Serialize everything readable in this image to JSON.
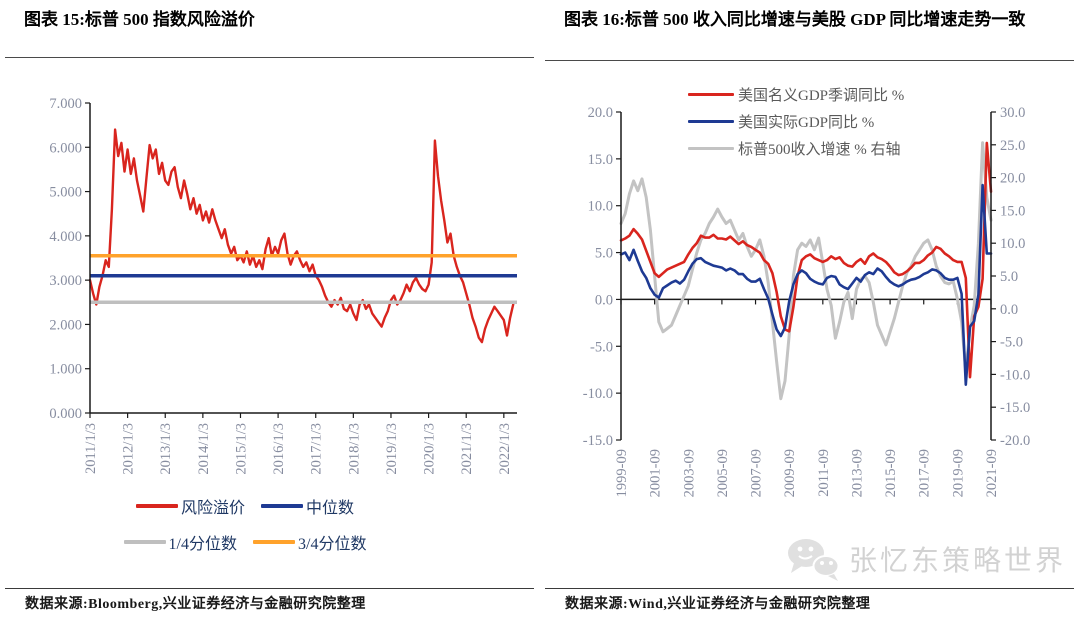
{
  "page": {
    "background": "#ffffff"
  },
  "left_panel": {
    "title": "图表 15:标普 500 指数风险溢价",
    "source": "数据来源:Bloomberg,兴业证券经济与金融研究院整理",
    "legend": [
      {
        "label": "风险溢价",
        "color": "#d9251e"
      },
      {
        "label": "中位数",
        "color": "#1e3a93"
      },
      {
        "label": "1/4分位数",
        "color": "#bfbfbf"
      },
      {
        "label": "3/4分位数",
        "color": "#ffa22b"
      }
    ]
  },
  "right_panel": {
    "title": "图表 16:标普 500 收入同比增速与美股 GDP 同比增速走势一致",
    "source": "数据来源:Wind,兴业证券经济与金融研究院整理",
    "legend": [
      {
        "label": "美国名义GDP季调同比 %",
        "color": "#d9251e"
      },
      {
        "label": "美国实际GDP同比 %",
        "color": "#1e3a93"
      },
      {
        "label": "标普500收入增速 % 右轴",
        "color": "#c3c3c3"
      }
    ],
    "watermark": "张忆东策略世界"
  },
  "chart_data": [
    {
      "type": "line",
      "title": "标普500指数风险溢价",
      "axes": {
        "left": {
          "min": 0,
          "max": 7,
          "ticks": [
            0,
            1,
            2,
            3,
            4,
            5,
            6,
            7
          ],
          "labels": [
            "0.000",
            "1.000",
            "2.000",
            "3.000",
            "4.000",
            "5.000",
            "6.000",
            "7.000"
          ]
        }
      },
      "x_axis": {
        "min": 2011,
        "max": 2022.35,
        "at_zero": false,
        "ticks": [
          2011,
          2012,
          2013,
          2014,
          2015,
          2016,
          2017,
          2018,
          2019,
          2020,
          2021,
          2022
        ],
        "labels": [
          "2011/1/3",
          "2012/1/3",
          "2013/1/3",
          "2014/1/3",
          "2015/1/3",
          "2016/1/3",
          "2017/1/3",
          "2018/1/3",
          "2019/1/3",
          "2020/1/3",
          "2021/1/3",
          "2022/1/3"
        ]
      },
      "hlines": [
        {
          "name": "3/4分位数",
          "value": 3.55,
          "color": "#ffa22b",
          "width": 3.5
        },
        {
          "name": "中位数",
          "value": 3.1,
          "color": "#1e3a93",
          "width": 3.5
        },
        {
          "name": "1/4分位数",
          "value": 2.5,
          "color": "#bfbfbf",
          "width": 3.5
        }
      ],
      "series": [
        {
          "name": "风险溢价",
          "color": "#d9251e",
          "axis": "left",
          "width": 2.4,
          "x_start": 2011,
          "x_end": 2022.25,
          "values": [
            3.0,
            2.7,
            2.45,
            2.85,
            3.1,
            3.45,
            3.3,
            4.6,
            6.4,
            5.8,
            6.1,
            5.45,
            5.95,
            5.4,
            5.75,
            5.25,
            4.9,
            4.55,
            5.3,
            6.05,
            5.75,
            5.95,
            5.4,
            5.65,
            5.25,
            5.15,
            5.45,
            5.55,
            5.1,
            4.85,
            5.25,
            4.95,
            4.6,
            4.85,
            4.5,
            4.7,
            4.35,
            4.55,
            4.3,
            4.6,
            4.35,
            4.15,
            3.95,
            4.15,
            3.8,
            3.6,
            3.75,
            3.45,
            3.55,
            3.4,
            3.65,
            3.35,
            3.55,
            3.3,
            3.45,
            3.25,
            3.7,
            3.95,
            3.55,
            3.75,
            3.6,
            3.9,
            4.05,
            3.6,
            3.35,
            3.55,
            3.65,
            3.45,
            3.3,
            3.4,
            3.2,
            3.35,
            3.1,
            3.0,
            2.85,
            2.65,
            2.5,
            2.4,
            2.55,
            2.45,
            2.6,
            2.35,
            2.3,
            2.45,
            2.25,
            2.1,
            2.45,
            2.55,
            2.35,
            2.45,
            2.25,
            2.15,
            2.05,
            1.95,
            2.15,
            2.3,
            2.55,
            2.65,
            2.45,
            2.55,
            2.7,
            2.9,
            2.75,
            2.95,
            3.05,
            2.9,
            2.8,
            2.75,
            2.9,
            3.4,
            6.15,
            5.35,
            4.8,
            4.35,
            3.85,
            4.05,
            3.55,
            3.3,
            3.1,
            2.95,
            2.7,
            2.45,
            2.15,
            1.95,
            1.7,
            1.6,
            1.9,
            2.1,
            2.25,
            2.4,
            2.3,
            2.2,
            2.1,
            1.75,
            2.15,
            2.45
          ]
        }
      ]
    },
    {
      "type": "line",
      "title": "标普500收入同比增速与美股GDP同比增速",
      "axes": {
        "left": {
          "min": -15,
          "max": 20,
          "ticks": [
            -15,
            -10,
            -5,
            0,
            5,
            10,
            15,
            20
          ],
          "labels": [
            "-15.0",
            "-10.0",
            "-5.0",
            "0.0",
            "5.0",
            "10.0",
            "15.0",
            "20.0"
          ]
        },
        "right": {
          "min": -20,
          "max": 30,
          "ticks": [
            -20,
            -15,
            -10,
            -5,
            0,
            5,
            10,
            15,
            20,
            25,
            30
          ],
          "labels": [
            "-20.0",
            "-15.0",
            "-10.0",
            "-5.0",
            "0.0",
            "5.0",
            "10.0",
            "15.0",
            "20.0",
            "25.0",
            "30.0"
          ]
        }
      },
      "x_axis": {
        "min": 0,
        "max": 88,
        "at_zero": true,
        "ticks": [
          0,
          8,
          16,
          24,
          32,
          40,
          48,
          56,
          64,
          72,
          80,
          88
        ],
        "labels": [
          "1999-09",
          "2001-09",
          "2003-09",
          "2005-09",
          "2007-09",
          "2009-09",
          "2011-09",
          "2013-09",
          "2015-09",
          "2017-09",
          "2019-09",
          "2021-09"
        ]
      },
      "hlines": [],
      "series": [
        {
          "name": "标普500收入增速 % 右轴",
          "color": "#c3c3c3",
          "axis": "right",
          "width": 3,
          "values": [
            13.0,
            14.5,
            17.5,
            19.5,
            18.0,
            19.8,
            17.0,
            12.0,
            5.0,
            -2.0,
            -3.5,
            -3.0,
            -2.5,
            -1.0,
            0.5,
            2.0,
            3.5,
            6.0,
            8.5,
            10.5,
            11.5,
            13.0,
            14.0,
            15.2,
            14.0,
            13.0,
            13.5,
            12.0,
            10.5,
            11.5,
            9.5,
            8.0,
            9.0,
            10.5,
            8.0,
            4.0,
            -2.0,
            -8.0,
            -13.7,
            -11.0,
            -4.0,
            5.0,
            9.0,
            10.0,
            9.5,
            10.5,
            9.0,
            10.8,
            7.0,
            3.0,
            0.5,
            -4.5,
            -2.0,
            1.0,
            2.5,
            -1.5,
            3.0,
            4.5,
            5.0,
            4.0,
            1.0,
            -2.5,
            -4.0,
            -5.5,
            -3.5,
            -1.5,
            1.0,
            3.5,
            5.5,
            6.5,
            8.0,
            9.0,
            10.0,
            10.5,
            9.0,
            6.5,
            5.0,
            4.0,
            3.8,
            4.2,
            1.5,
            -2.0,
            -9.5,
            -3.0,
            0.5,
            10.0,
            25.3,
            17.0,
            13.5
          ]
        },
        {
          "name": "美国名义GDP季调同比 %",
          "color": "#d9251e",
          "axis": "left",
          "width": 2.6,
          "values": [
            6.3,
            6.5,
            6.8,
            7.5,
            7.0,
            6.4,
            5.2,
            4.0,
            2.8,
            2.4,
            2.8,
            3.2,
            3.4,
            3.6,
            3.8,
            4.0,
            4.8,
            5.5,
            6.0,
            6.8,
            6.6,
            6.6,
            6.9,
            6.5,
            6.5,
            6.4,
            6.7,
            6.3,
            5.9,
            6.2,
            5.8,
            5.6,
            5.3,
            5.0,
            4.2,
            3.8,
            2.8,
            0.8,
            -1.8,
            -3.2,
            -3.4,
            -0.8,
            2.5,
            4.2,
            4.6,
            4.8,
            4.4,
            4.2,
            4.0,
            4.2,
            4.6,
            4.3,
            4.5,
            3.9,
            3.6,
            3.5,
            4.0,
            4.3,
            3.8,
            4.6,
            4.9,
            4.5,
            4.3,
            4.0,
            3.5,
            2.9,
            2.6,
            2.7,
            3.0,
            3.4,
            3.9,
            3.9,
            4.2,
            4.7,
            5.0,
            5.6,
            5.4,
            4.9,
            4.6,
            4.2,
            4.0,
            4.0,
            2.3,
            -8.3,
            -1.8,
            -0.8,
            2.2,
            16.7,
            11.5
          ]
        },
        {
          "name": "美国实际GDP同比 %",
          "color": "#1e3a93",
          "axis": "left",
          "width": 2.6,
          "values": [
            4.8,
            5.0,
            4.2,
            5.3,
            4.1,
            3.0,
            2.3,
            1.2,
            0.5,
            0.2,
            1.2,
            1.5,
            1.8,
            2.0,
            1.7,
            2.1,
            3.0,
            3.8,
            4.3,
            4.4,
            4.0,
            3.8,
            3.6,
            3.5,
            3.4,
            3.1,
            3.3,
            3.1,
            2.7,
            2.7,
            2.2,
            1.9,
            1.9,
            2.2,
            1.1,
            0.1,
            -1.6,
            -3.2,
            -3.9,
            -3.0,
            -0.2,
            1.6,
            2.7,
            3.1,
            2.8,
            2.2,
            1.9,
            1.7,
            1.6,
            2.3,
            2.5,
            2.4,
            1.6,
            1.3,
            1.1,
            1.7,
            2.3,
            1.9,
            2.6,
            2.9,
            2.7,
            3.3,
            3.0,
            2.4,
            1.9,
            1.6,
            1.4,
            1.6,
            1.9,
            2.1,
            2.2,
            2.4,
            2.7,
            2.9,
            3.2,
            3.1,
            2.8,
            2.3,
            2.1,
            2.1,
            2.3,
            0.6,
            -9.1,
            -2.9,
            -2.3,
            0.5,
            12.2,
            4.9,
            4.9
          ]
        }
      ]
    }
  ]
}
